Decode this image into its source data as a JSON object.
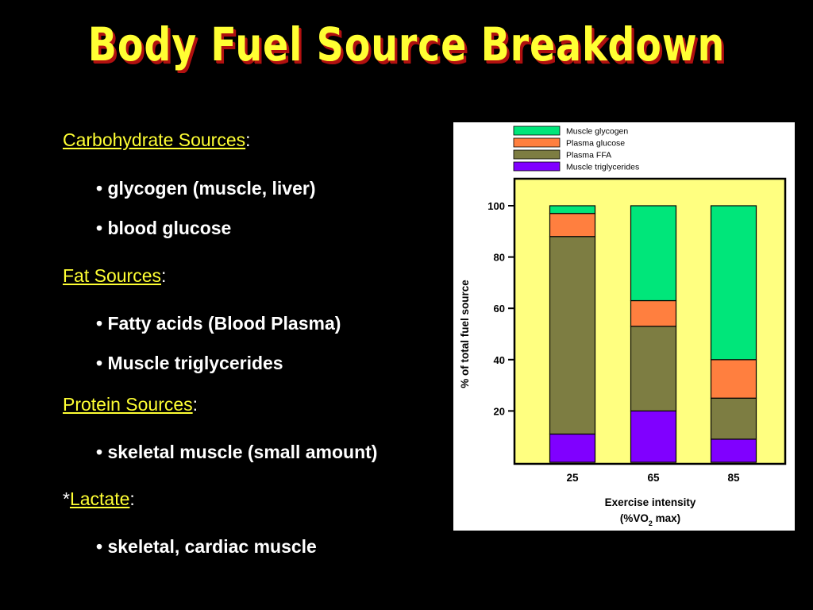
{
  "slide": {
    "title": "Body Fuel Source Breakdown",
    "sections": [
      {
        "prefix": "",
        "label": "Carbohydrate Sources",
        "suffix": ":"
      },
      {
        "prefix": "",
        "label": "Fat Sources",
        "suffix": ":"
      },
      {
        "prefix": "",
        "label": "Protein Sources",
        "suffix": ":"
      },
      {
        "prefix": "*",
        "label": "Lactate",
        "suffix": ":"
      }
    ],
    "bullets": [
      "• glycogen (muscle, liver)",
      "• blood glucose",
      "• Fatty acids (Blood Plasma)",
      "• Muscle triglycerides",
      "• skeletal muscle (small amount)",
      "• skeletal, cardiac muscle"
    ]
  },
  "chart_data": {
    "type": "bar",
    "stacked": true,
    "categories": [
      "25",
      "65",
      "85"
    ],
    "series": [
      {
        "name": "Muscle triglycerides",
        "color": "#8000ff",
        "values": [
          11,
          20,
          9
        ]
      },
      {
        "name": "Plasma FFA",
        "color": "#7d7d42",
        "values": [
          77,
          33,
          16
        ]
      },
      {
        "name": "Plasma glucose",
        "color": "#ff7f3f",
        "values": [
          9,
          10,
          15
        ]
      },
      {
        "name": "Muscle glycogen",
        "color": "#00e67a",
        "values": [
          3,
          37,
          60
        ]
      }
    ],
    "legend_order": [
      "Muscle glycogen",
      "Plasma glucose",
      "Plasma FFA",
      "Muscle triglycerides"
    ],
    "xlabel_line1": "Exercise intensity",
    "xlabel_line2_pre": "(%VO",
    "xlabel_line2_sub": "2",
    "xlabel_line2_post": " max)",
    "ylabel": "% of total fuel source",
    "yticks": [
      20,
      40,
      60,
      80,
      100
    ],
    "ylim": [
      0,
      100
    ],
    "legend_position": "top",
    "plot_background": "#ffff80"
  }
}
